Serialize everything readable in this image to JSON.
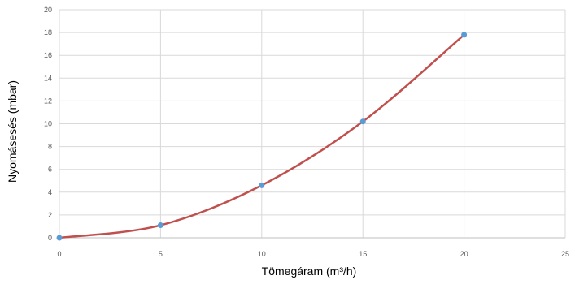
{
  "chart_data": {
    "type": "line",
    "title": "",
    "xlabel": "Tömegáram (m³/h)",
    "ylabel": "Nyomásesés (mbar)",
    "xlim": [
      0,
      25
    ],
    "ylim": [
      0,
      20
    ],
    "xticks": [
      "0",
      "5",
      "10",
      "15",
      "20",
      "25"
    ],
    "yticks": [
      "0",
      "2",
      "4",
      "6",
      "8",
      "10",
      "12",
      "14",
      "16",
      "18",
      "20"
    ],
    "grid": true,
    "legend": "none",
    "series": [
      {
        "line_color": "#c0504d",
        "marker_color": "#5b9bd5",
        "x": [
          0,
          5,
          10,
          15,
          20
        ],
        "y": [
          0,
          1.1,
          4.6,
          10.2,
          17.8
        ]
      }
    ]
  }
}
